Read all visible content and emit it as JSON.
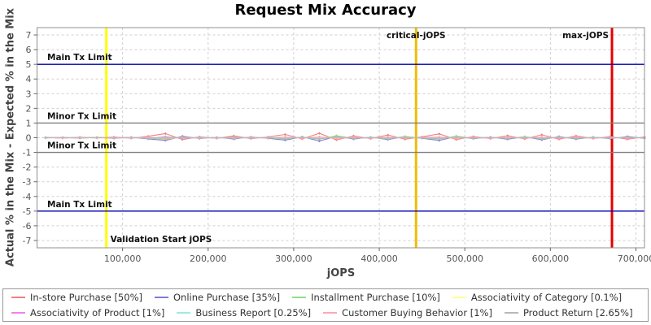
{
  "title": "Request Mix Accuracy",
  "axes": {
    "y_title": "Actual % in the Mix - Expected % in the Mix",
    "x_title": "jOPS",
    "y_ticks": [
      7,
      6,
      5,
      4,
      3,
      2,
      1,
      0,
      -1,
      -2,
      -3,
      -4,
      -5,
      -6,
      -7
    ],
    "x_ticks": [
      {
        "value": 100000,
        "label": "100,000"
      },
      {
        "value": 200000,
        "label": "200,000"
      },
      {
        "value": 300000,
        "label": "300,000"
      },
      {
        "value": 400000,
        "label": "400,000"
      },
      {
        "value": 500000,
        "label": "500,000"
      },
      {
        "value": 600000,
        "label": "600,000"
      },
      {
        "value": 700000,
        "label": "700,000"
      }
    ]
  },
  "chart_data": {
    "type": "line",
    "title": "Request Mix Accuracy",
    "xlabel": "jOPS",
    "ylabel": "Actual % in the Mix - Expected % in the Mix",
    "xlim": [
      0,
      710000
    ],
    "ylim": [
      -7.5,
      7.5
    ],
    "grid": true,
    "legend_position": "bottom",
    "x_start": 10000,
    "x_step": 20000,
    "reference_lines": {
      "horizontal": [
        {
          "label": "Main Tx Limit",
          "y": 5,
          "color": "#0000B0"
        },
        {
          "label": "Minor Tx Limit",
          "y": 1,
          "color": "#808080"
        },
        {
          "label": "Minor Tx Limit",
          "y": -1,
          "color": "#808080"
        },
        {
          "label": "Main Tx Limit",
          "y": -5,
          "color": "#0000B0"
        }
      ],
      "vertical": [
        {
          "label": "Validation Start jOPS",
          "x": 81000,
          "color": "#FFFF00",
          "label_position": "bottom-right"
        },
        {
          "label": "critical-jOPS",
          "x": 443000,
          "color": "#EFBE00",
          "label_position": "top-center"
        },
        {
          "label": "max-jOPS",
          "x": 672000,
          "color": "#E60000",
          "label_position": "top-left"
        }
      ]
    },
    "series": [
      {
        "name": "In-store Purchase [50%]",
        "color": "#F08080",
        "values": [
          0.02,
          -0.03,
          0.04,
          -0.02,
          0.05,
          -0.04,
          0.1,
          0.28,
          -0.12,
          0.06,
          -0.04,
          0.12,
          -0.06,
          0.05,
          0.22,
          -0.08,
          0.3,
          -0.15,
          0.12,
          -0.06,
          0.18,
          -0.1,
          0.06,
          0.26,
          -0.12,
          0.08,
          -0.06,
          0.14,
          -0.08,
          0.2,
          -0.1,
          0.12,
          -0.05,
          0.08,
          -0.1,
          0.05
        ]
      },
      {
        "name": "Online Purchase [35%]",
        "color": "#7D7DD1",
        "values": [
          -0.01,
          0.02,
          -0.03,
          0.02,
          -0.04,
          0.03,
          -0.08,
          -0.18,
          0.1,
          -0.05,
          0.03,
          -0.09,
          0.05,
          -0.04,
          -0.16,
          0.06,
          -0.22,
          0.1,
          -0.09,
          0.04,
          -0.12,
          0.08,
          -0.04,
          -0.18,
          0.09,
          -0.06,
          0.04,
          -0.1,
          0.06,
          -0.14,
          0.08,
          -0.09,
          0.04,
          -0.06,
          0.08,
          -0.04
        ]
      },
      {
        "name": "Installment Purchase [10%]",
        "color": "#8EE08E",
        "values": [
          0.0,
          0.01,
          -0.01,
          0.01,
          -0.02,
          0.02,
          -0.03,
          -0.1,
          0.03,
          -0.02,
          0.02,
          -0.04,
          0.02,
          -0.01,
          -0.08,
          0.03,
          -0.1,
          0.14,
          -0.04,
          0.02,
          -0.07,
          0.09,
          -0.02,
          -0.09,
          0.11,
          -0.03,
          0.02,
          -0.05,
          0.07,
          -0.07,
          0.04,
          -0.04,
          0.02,
          -0.02,
          0.03,
          -0.01
        ]
      },
      {
        "name": "Associativity of Category [0.1%]",
        "color": "#FFFF99",
        "values": [
          0.0,
          0.01,
          0.0,
          -0.01,
          0.0,
          0.01,
          -0.01,
          0.02,
          -0.01,
          0.0,
          0.01,
          -0.01,
          0.0,
          0.01,
          -0.01,
          0.0,
          0.02,
          -0.01,
          0.01,
          0.0,
          -0.01,
          0.01,
          0.0,
          -0.01,
          0.01,
          0.0,
          -0.01,
          0.01,
          0.0,
          -0.01,
          0.01,
          0.0,
          -0.01,
          0.01,
          0.0,
          0.0
        ]
      },
      {
        "name": "Associativity of Product [1%]",
        "color": "#EE82EE",
        "values": [
          0.01,
          -0.01,
          0.01,
          0.0,
          -0.01,
          0.02,
          -0.02,
          0.03,
          -0.02,
          0.01,
          -0.01,
          0.02,
          -0.01,
          0.01,
          -0.03,
          0.02,
          -0.03,
          0.02,
          -0.02,
          0.01,
          -0.02,
          0.02,
          -0.01,
          0.02,
          -0.02,
          0.01,
          -0.01,
          0.02,
          -0.01,
          0.01,
          -0.02,
          0.01,
          -0.01,
          0.01,
          -0.01,
          0.0
        ]
      },
      {
        "name": "Business Report [0.25%]",
        "color": "#9FE8E8",
        "values": [
          0.0,
          0.01,
          -0.01,
          0.01,
          0.0,
          -0.01,
          0.02,
          -0.04,
          0.02,
          -0.01,
          0.01,
          -0.02,
          0.01,
          0.0,
          -0.03,
          0.02,
          -0.05,
          0.04,
          -0.02,
          0.01,
          -0.03,
          0.02,
          -0.01,
          -0.03,
          0.03,
          -0.01,
          0.01,
          -0.02,
          0.02,
          -0.02,
          0.02,
          -0.01,
          0.01,
          -0.01,
          0.01,
          0.0
        ]
      },
      {
        "name": "Customer Buying Behavior [1%]",
        "color": "#FCA8B4",
        "values": [
          0.01,
          -0.02,
          0.02,
          -0.01,
          0.02,
          -0.02,
          0.04,
          -0.06,
          0.03,
          -0.02,
          0.02,
          -0.03,
          0.02,
          -0.02,
          0.05,
          -0.03,
          0.06,
          -0.05,
          0.03,
          -0.02,
          0.04,
          -0.03,
          0.02,
          0.05,
          -0.04,
          0.02,
          -0.02,
          0.03,
          -0.02,
          0.04,
          -0.03,
          0.02,
          -0.02,
          0.02,
          -0.03,
          0.01
        ]
      },
      {
        "name": "Product Return [2.65%]",
        "color": "#B8B8B8",
        "values": [
          -0.01,
          0.02,
          -0.02,
          0.02,
          -0.03,
          0.03,
          -0.05,
          0.08,
          -0.04,
          0.03,
          -0.02,
          0.04,
          -0.03,
          0.02,
          -0.06,
          0.04,
          -0.08,
          0.06,
          -0.04,
          0.02,
          -0.05,
          0.04,
          -0.02,
          -0.06,
          0.05,
          -0.03,
          0.02,
          -0.04,
          0.03,
          -0.05,
          0.04,
          -0.03,
          0.02,
          -0.02,
          0.03,
          -0.01
        ]
      }
    ]
  },
  "legend": {
    "items": [
      {
        "label": "In-store Purchase [50%]",
        "color": "#F08080"
      },
      {
        "label": "Online Purchase [35%]",
        "color": "#7D7DD1"
      },
      {
        "label": "Installment Purchase [10%]",
        "color": "#8EE08E"
      },
      {
        "label": "Associativity of Category [0.1%]",
        "color": "#FFFF99"
      },
      {
        "label": "Associativity of Product [1%]",
        "color": "#EE82EE"
      },
      {
        "label": "Business Report [0.25%]",
        "color": "#9FE8E8"
      },
      {
        "label": "Customer Buying Behavior [1%]",
        "color": "#FCA8B4"
      },
      {
        "label": "Product Return [2.65%]",
        "color": "#B8B8B8"
      }
    ]
  }
}
